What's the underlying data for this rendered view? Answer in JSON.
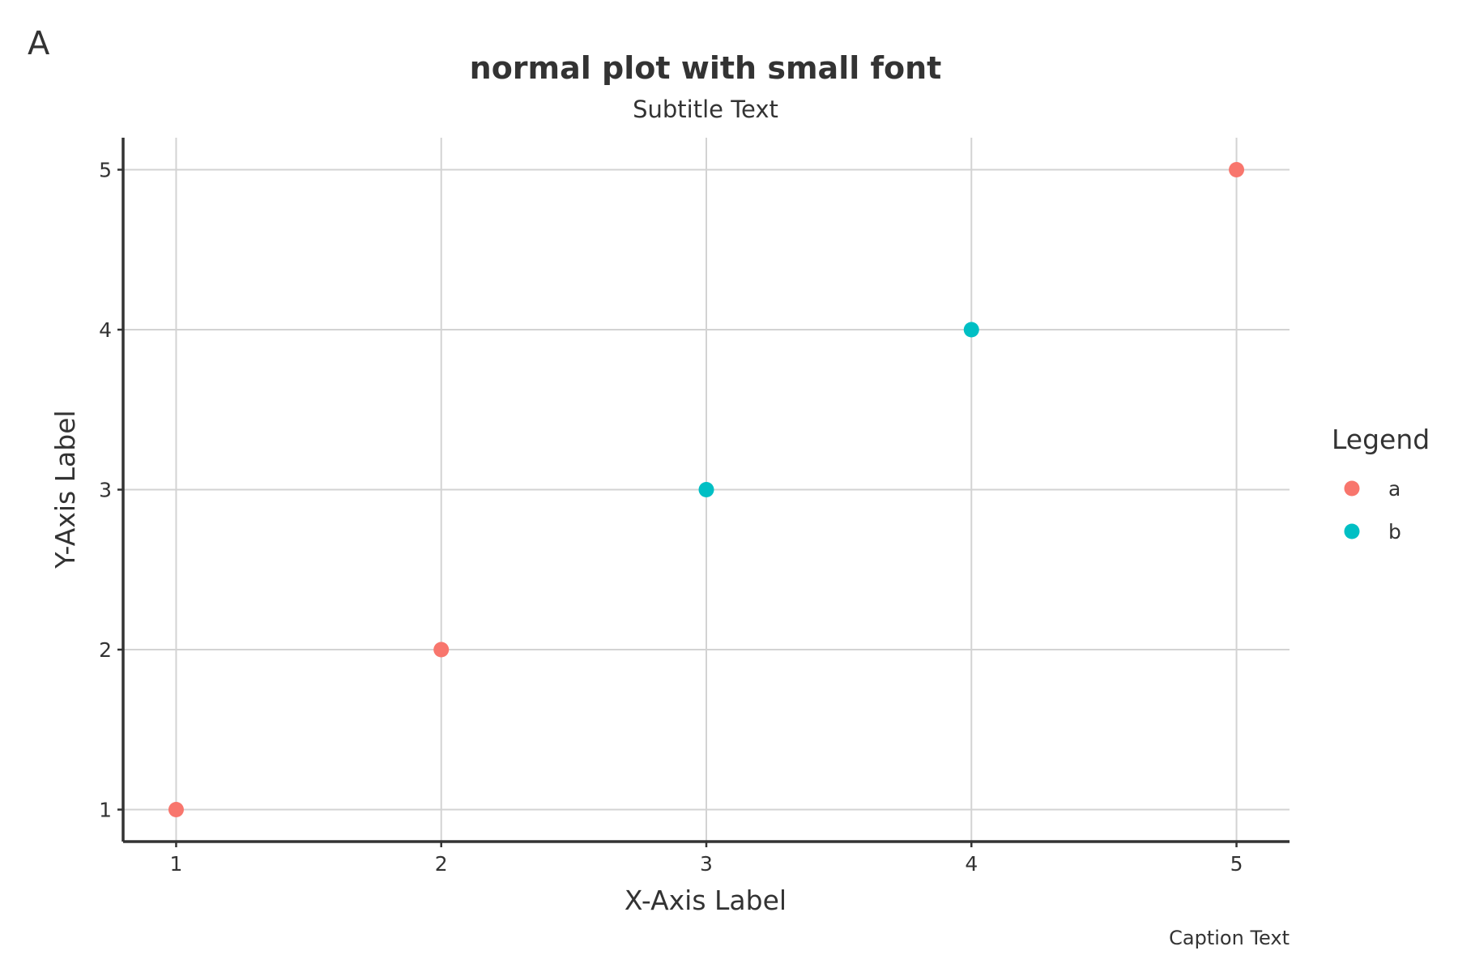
{
  "chart_data": {
    "type": "scatter",
    "tag": "A",
    "title": "normal plot with small font",
    "subtitle": "Subtitle Text",
    "xlabel": "X-Axis Label",
    "ylabel": "Y-Axis Label",
    "caption": "Caption Text",
    "xlim": [
      0.8,
      5.2
    ],
    "ylim": [
      0.8,
      5.2
    ],
    "xticks": [
      1,
      2,
      3,
      4,
      5
    ],
    "yticks": [
      1,
      2,
      3,
      4,
      5
    ],
    "grid": true,
    "legend": {
      "title": "Legend",
      "placement": "right"
    },
    "series": [
      {
        "name": "a",
        "color": "#F8766D",
        "points": [
          {
            "x": 1,
            "y": 1
          },
          {
            "x": 2,
            "y": 2
          },
          {
            "x": 5,
            "y": 5
          }
        ]
      },
      {
        "name": "b",
        "color": "#00BFC4",
        "points": [
          {
            "x": 3,
            "y": 3
          },
          {
            "x": 4,
            "y": 4
          }
        ]
      }
    ]
  }
}
